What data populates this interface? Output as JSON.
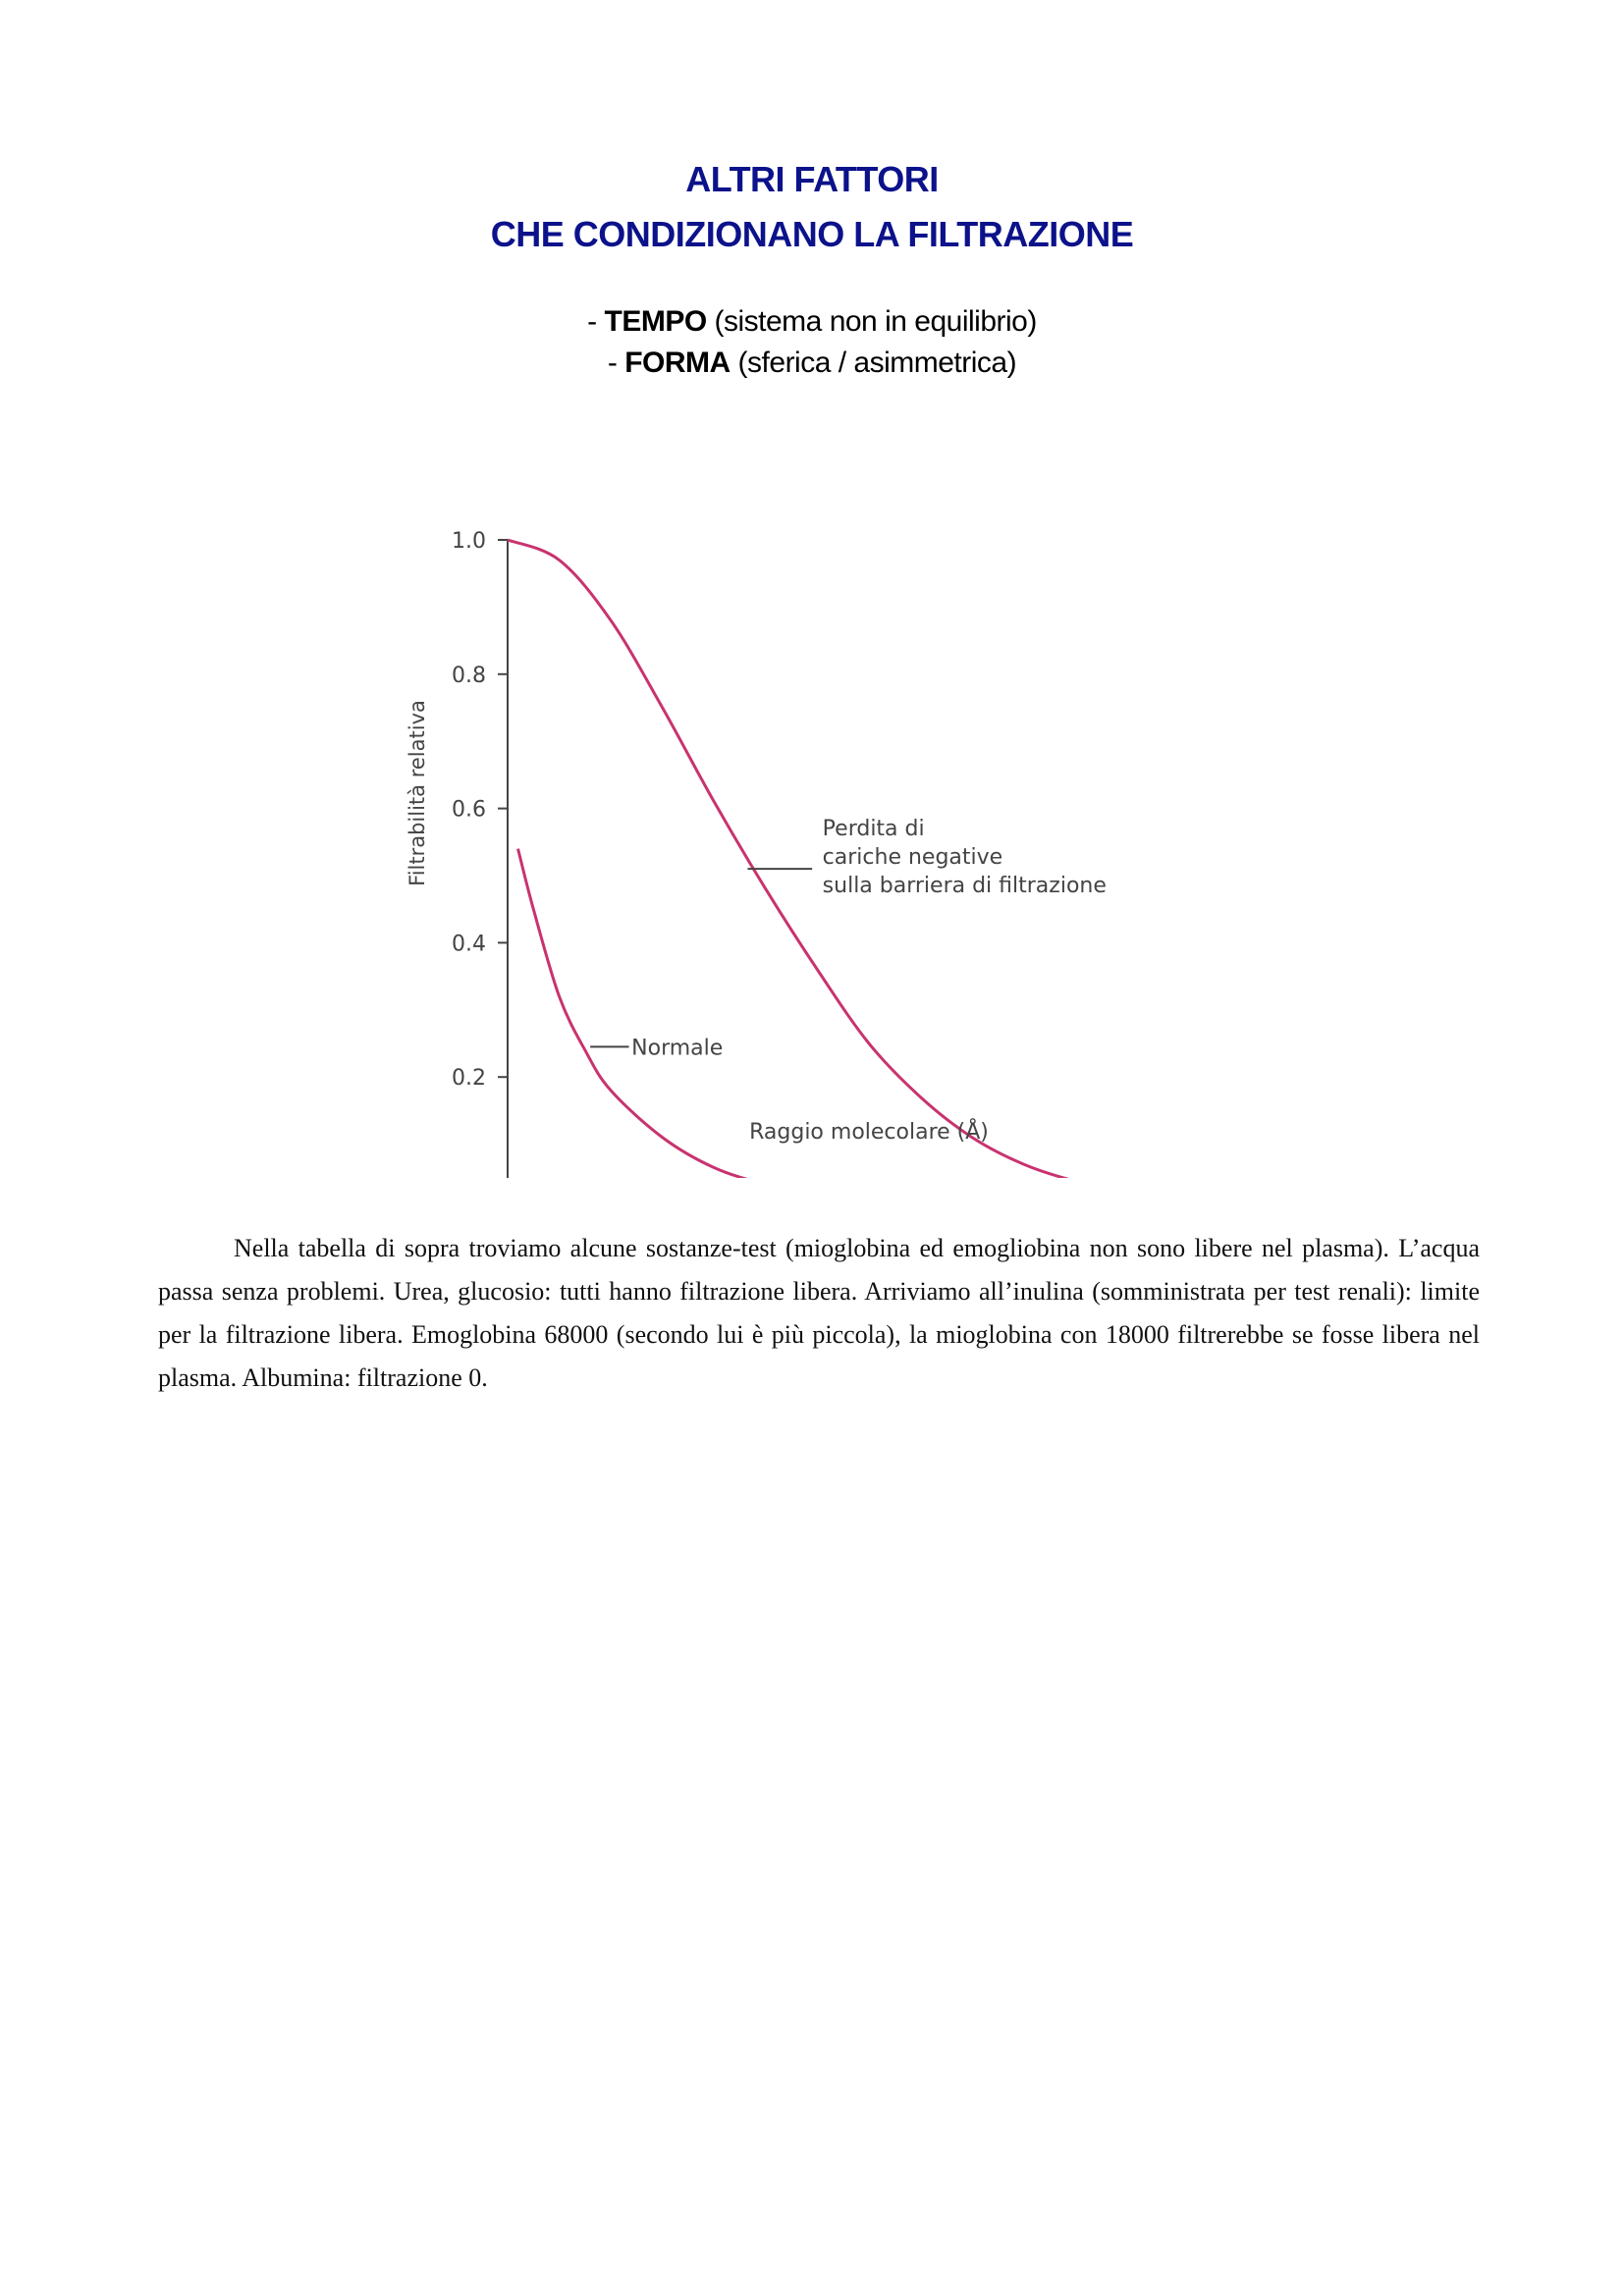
{
  "heading": {
    "line1": "ALTRI FATTORI",
    "line2": "CHE CONDIZIONANO LA FILTRAZIONE"
  },
  "factors": [
    {
      "prefix": "- ",
      "label": "TEMPO",
      "detail": " (sistema non in equilibrio)"
    },
    {
      "prefix": "- ",
      "label": "FORMA",
      "detail": " (sferica / asimmetrica)"
    }
  ],
  "chart_data": {
    "type": "line",
    "title": "",
    "xlabel": "Raggio molecolare (Å)",
    "ylabel": "Filtrabilità relativa",
    "xlim": [
      18,
      46
    ],
    "ylim": [
      0,
      1.0
    ],
    "xticks": [
      "18",
      "22",
      "26",
      "30",
      "34",
      "38",
      "42",
      "46"
    ],
    "yticks": [
      "0",
      "0.2",
      "0.4",
      "0.6",
      "0.8",
      "1.0"
    ],
    "grid": false,
    "color": "#c8336e",
    "series": [
      {
        "name": "Perdita di cariche negative sulla barriera di filtrazione",
        "label_lines": [
          "Perdita di",
          "cariche negative",
          "sulla barriera di filtrazione"
        ],
        "x": [
          18,
          20,
          22,
          24,
          26,
          28,
          30,
          32,
          34,
          36,
          38,
          40,
          42,
          44.3
        ],
        "y": [
          1.0,
          0.97,
          0.88,
          0.75,
          0.61,
          0.48,
          0.36,
          0.25,
          0.17,
          0.11,
          0.07,
          0.045,
          0.03,
          0.02
        ]
      },
      {
        "name": "Normale",
        "label_lines": [
          "Normale"
        ],
        "x": [
          18.4,
          19,
          20,
          21,
          22,
          24,
          26,
          28,
          30,
          34,
          38,
          42,
          44.4
        ],
        "y": [
          0.54,
          0.45,
          0.32,
          0.24,
          0.18,
          0.11,
          0.065,
          0.04,
          0.022,
          0.008,
          0.002,
          0.002,
          0.004
        ]
      }
    ]
  },
  "paragraph": "Nella tabella di sopra troviamo alcune sostanze-test (mioglobina ed emogliobina non sono libere nel plasma). L’acqua passa senza problemi. Urea, glucosio: tutti hanno filtrazione libera. Arriviamo all’inulina (somministrata per test renali): limite per la filtrazione libera. Emoglobina 68000 (secondo lui è più piccola), la mioglobina con 18000 filtrerebbe se fosse libera nel plasma. Albumina: filtrazione 0."
}
